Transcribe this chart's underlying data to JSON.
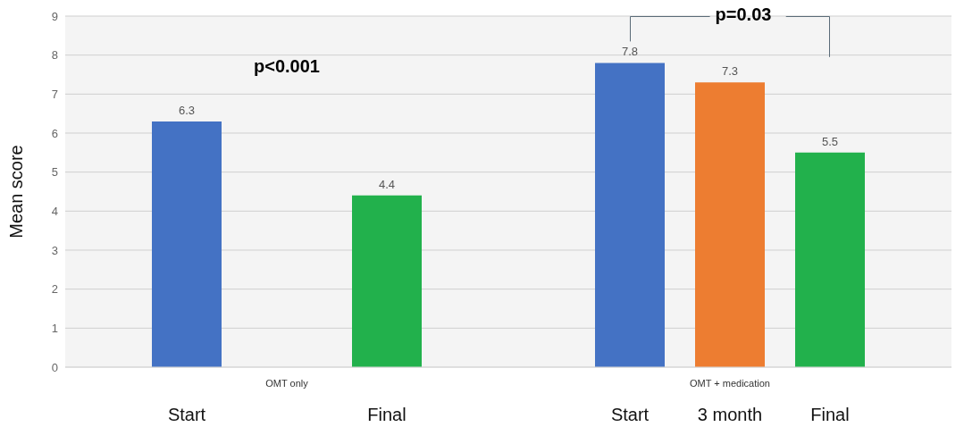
{
  "chart_data": {
    "type": "bar",
    "ylabel": "Mean score",
    "categories": [
      "OMT only",
      "OMT + medication"
    ],
    "series": [
      {
        "name": "Start",
        "color": "#4472c4",
        "values": [
          6.3,
          7.8
        ]
      },
      {
        "name": "3 month",
        "color": "#ed7d31",
        "values": [
          null,
          7.3
        ]
      },
      {
        "name": "Final",
        "color": "#22b14c",
        "values": [
          4.4,
          5.5
        ]
      }
    ],
    "ylim": [
      0,
      9
    ],
    "yticks": [
      0,
      1,
      2,
      3,
      4,
      5,
      6,
      7,
      8,
      9
    ],
    "grid": "y",
    "data_labels": true,
    "annotations": [
      "p<0.001",
      "p=0.03"
    ]
  }
}
